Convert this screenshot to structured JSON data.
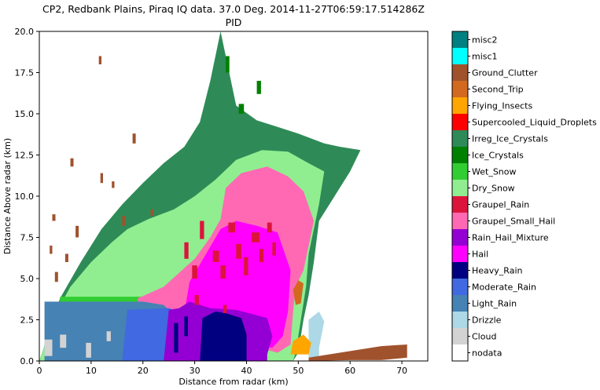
{
  "chart_data": {
    "type": "heatmap",
    "title_line1": "CP2, Redbank Plains, Piraq IQ data. 37.0 Deg. 2014-11-27T06:59:17.514286Z",
    "title_line2": "PID",
    "xlabel": "Distance from radar (km)",
    "ylabel": "Distance Above radar  (km)",
    "xlim": [
      0,
      75
    ],
    "ylim": [
      0,
      20
    ],
    "xticks": [
      0,
      10,
      20,
      30,
      40,
      50,
      60,
      70
    ],
    "yticks": [
      0.0,
      2.5,
      5.0,
      7.5,
      10.0,
      12.5,
      15.0,
      17.5,
      20.0
    ],
    "colorbar_categories": [
      {
        "name": "misc2",
        "color": "#008080"
      },
      {
        "name": "misc1",
        "color": "#00ffff"
      },
      {
        "name": "Ground_Clutter",
        "color": "#a0522d"
      },
      {
        "name": "Second_Trip",
        "color": "#d2691e"
      },
      {
        "name": "Flying_Insects",
        "color": "#ffa500"
      },
      {
        "name": "Supercooled_Liquid_Droplets",
        "color": "#ff0000"
      },
      {
        "name": "Irreg_Ice_Crystals",
        "color": "#2e8b57"
      },
      {
        "name": "Ice_Crystals",
        "color": "#008000"
      },
      {
        "name": "Wet_Snow",
        "color": "#32cd32"
      },
      {
        "name": "Dry_Snow",
        "color": "#90ee90"
      },
      {
        "name": "Graupel_Rain",
        "color": "#dc143c"
      },
      {
        "name": "Graupel_Small_Hail",
        "color": "#ff69b4"
      },
      {
        "name": "Rain_Hail_Mixture",
        "color": "#9400d3"
      },
      {
        "name": "Hail",
        "color": "#ff00ff"
      },
      {
        "name": "Heavy_Rain",
        "color": "#000080"
      },
      {
        "name": "Moderate_Rain",
        "color": "#4169e1"
      },
      {
        "name": "Light_Rain",
        "color": "#4682b4"
      },
      {
        "name": "Drizzle",
        "color": "#add8e6"
      },
      {
        "name": "Cloud",
        "color": "#d3d3d3"
      },
      {
        "name": "nodata",
        "color": "#ffffff"
      }
    ],
    "regions": [
      {
        "class": "Irreg_Ice_Crystals",
        "poly": [
          [
            0,
            0
          ],
          [
            4,
            3.8
          ],
          [
            8,
            6
          ],
          [
            12,
            8
          ],
          [
            16,
            9.5
          ],
          [
            20,
            10.8
          ],
          [
            24,
            12
          ],
          [
            28,
            13
          ],
          [
            31,
            14.5
          ],
          [
            33,
            17
          ],
          [
            35,
            20
          ],
          [
            37,
            17
          ],
          [
            38,
            15.5
          ],
          [
            42,
            14.6
          ],
          [
            46,
            14.2
          ],
          [
            50,
            13.8
          ],
          [
            55,
            13.2
          ],
          [
            58,
            13
          ],
          [
            62,
            12.8
          ],
          [
            60,
            11.5
          ],
          [
            56,
            9.5
          ],
          [
            54,
            8.5
          ],
          [
            53,
            6
          ],
          [
            52,
            4
          ],
          [
            51,
            2.5
          ],
          [
            50,
            0.5
          ],
          [
            49,
            0
          ]
        ]
      },
      {
        "class": "Dry_Snow",
        "poly": [
          [
            0,
            0
          ],
          [
            3,
            2.8
          ],
          [
            6,
            4.5
          ],
          [
            10,
            6
          ],
          [
            14,
            7.2
          ],
          [
            17,
            8
          ],
          [
            21,
            8.6
          ],
          [
            26,
            9.2
          ],
          [
            30,
            10
          ],
          [
            34,
            11
          ],
          [
            38,
            12.2
          ],
          [
            43,
            12.8
          ],
          [
            48,
            12.7
          ],
          [
            52,
            12
          ],
          [
            55,
            11.5
          ],
          [
            54,
            9.5
          ],
          [
            53,
            8
          ],
          [
            52,
            6.5
          ],
          [
            51.5,
            4.5
          ],
          [
            50.5,
            2.5
          ],
          [
            49.5,
            0.5
          ],
          [
            49,
            0
          ]
        ]
      },
      {
        "class": "Wet_Snow",
        "poly": [
          [
            4,
            3.4
          ],
          [
            42,
            3.4
          ],
          [
            42,
            3.9
          ],
          [
            4,
            3.9
          ]
        ]
      },
      {
        "class": "Graupel_Small_Hail",
        "poly": [
          [
            19,
            3.8
          ],
          [
            24,
            4.5
          ],
          [
            30,
            6.2
          ],
          [
            33,
            7.5
          ],
          [
            35,
            8.6
          ],
          [
            36,
            10.5
          ],
          [
            39,
            11.4
          ],
          [
            44,
            11.8
          ],
          [
            48,
            11.2
          ],
          [
            51,
            10.3
          ],
          [
            53,
            8.5
          ],
          [
            51,
            5.5
          ],
          [
            49.5,
            4.5
          ],
          [
            49,
            3
          ],
          [
            48.5,
            1
          ],
          [
            46,
            0.5
          ],
          [
            40,
            1
          ],
          [
            20,
            1
          ]
        ]
      },
      {
        "class": "Hail",
        "poly": [
          [
            27,
            1
          ],
          [
            29,
            4.8
          ],
          [
            32,
            6.4
          ],
          [
            35,
            8
          ],
          [
            38,
            8.5
          ],
          [
            42,
            8.2
          ],
          [
            46,
            7.8
          ],
          [
            48.5,
            5.5
          ],
          [
            48,
            3
          ],
          [
            47,
            1.5
          ],
          [
            45,
            0.8
          ],
          [
            40,
            1
          ],
          [
            33,
            1
          ]
        ]
      },
      {
        "class": "Light_Rain",
        "poly": [
          [
            1,
            0
          ],
          [
            1,
            3.6
          ],
          [
            20,
            3.6
          ],
          [
            24,
            3.4
          ],
          [
            26,
            2.8
          ],
          [
            27,
            0
          ]
        ]
      },
      {
        "class": "Moderate_Rain",
        "poly": [
          [
            16,
            0
          ],
          [
            17,
            3.1
          ],
          [
            25,
            3.2
          ],
          [
            27,
            3.0
          ],
          [
            30,
            3.1
          ],
          [
            30,
            0
          ]
        ]
      },
      {
        "class": "Rain_Hail_Mixture",
        "poly": [
          [
            24,
            0
          ],
          [
            25,
            3.1
          ],
          [
            27,
            3.2
          ],
          [
            29,
            3.6
          ],
          [
            33,
            3.2
          ],
          [
            38,
            3.1
          ],
          [
            44,
            2.6
          ],
          [
            45,
            1.5
          ],
          [
            44,
            0.4
          ],
          [
            44,
            0
          ]
        ]
      },
      {
        "class": "Heavy_Rain",
        "poly": [
          [
            31,
            0
          ],
          [
            31.5,
            2.6
          ],
          [
            34,
            3.0
          ],
          [
            36,
            2.9
          ],
          [
            39,
            2.6
          ],
          [
            40,
            1.6
          ],
          [
            40,
            0
          ]
        ]
      },
      {
        "class": "Drizzle",
        "poly": [
          [
            52,
            0
          ],
          [
            52,
            2.5
          ],
          [
            54,
            3.0
          ],
          [
            55,
            2.4
          ],
          [
            54,
            0.8
          ],
          [
            54,
            0
          ]
        ]
      },
      {
        "class": "Flying_Insects",
        "poly": [
          [
            48.5,
            0.4
          ],
          [
            49,
            1.2
          ],
          [
            51,
            1.6
          ],
          [
            52.5,
            1.1
          ],
          [
            52,
            0.4
          ]
        ]
      },
      {
        "class": "Second_Trip",
        "poly": [
          [
            49,
            4.3
          ],
          [
            50,
            4.9
          ],
          [
            51,
            4.7
          ],
          [
            50.5,
            3.5
          ],
          [
            49.5,
            3.4
          ]
        ]
      },
      {
        "class": "Ground_Clutter",
        "poly": [
          [
            52,
            0.2
          ],
          [
            60,
            0.6
          ],
          [
            66,
            0.9
          ],
          [
            71,
            1.0
          ],
          [
            71,
            0.2
          ],
          [
            66,
            0.05
          ],
          [
            60,
            0.05
          ],
          [
            52,
            0
          ]
        ]
      }
    ],
    "patches": [
      {
        "class": "Ground_Clutter",
        "rects": [
          [
            6.0,
            11.8,
            0.6,
            0.5
          ],
          [
            7.0,
            7.5,
            0.6,
            0.7
          ],
          [
            11.5,
            18.0,
            0.5,
            0.5
          ],
          [
            11.8,
            10.8,
            0.5,
            0.6
          ],
          [
            14.0,
            10.5,
            0.5,
            0.4
          ],
          [
            16.0,
            8.2,
            0.6,
            0.6
          ],
          [
            18.0,
            13.2,
            0.6,
            0.6
          ],
          [
            21.5,
            8.8,
            0.5,
            0.4
          ],
          [
            2.5,
            8.5,
            0.6,
            0.4
          ],
          [
            2.0,
            6.5,
            0.5,
            0.5
          ],
          [
            3.0,
            4.8,
            0.6,
            0.6
          ],
          [
            5.0,
            6.0,
            0.6,
            0.5
          ]
        ]
      },
      {
        "class": "Graupel_Rain",
        "rects": [
          [
            28.0,
            6.2,
            0.8,
            1.0
          ],
          [
            29.5,
            5.0,
            1.0,
            0.8
          ],
          [
            31.0,
            7.4,
            0.8,
            1.1
          ],
          [
            33.5,
            6.0,
            1.2,
            0.7
          ],
          [
            35.0,
            5.0,
            1.0,
            0.8
          ],
          [
            36.5,
            7.8,
            1.3,
            0.6
          ],
          [
            38.0,
            6.2,
            1.0,
            0.9
          ],
          [
            39.5,
            5.2,
            0.8,
            1.1
          ],
          [
            41.0,
            7.2,
            1.5,
            0.6
          ],
          [
            42.5,
            6.0,
            0.8,
            0.8
          ],
          [
            44.0,
            7.8,
            0.9,
            0.6
          ],
          [
            45.0,
            6.4,
            0.7,
            0.8
          ],
          [
            30.0,
            3.4,
            0.8,
            0.6
          ],
          [
            35.5,
            2.9,
            0.7,
            0.5
          ]
        ]
      },
      {
        "class": "Cloud",
        "rects": [
          [
            1.0,
            0.3,
            1.5,
            1.0
          ],
          [
            4.0,
            0.8,
            1.2,
            0.8
          ],
          [
            9.0,
            0.2,
            1.0,
            0.9
          ],
          [
            13.0,
            1.2,
            0.8,
            0.6
          ]
        ]
      },
      {
        "class": "Heavy_Rain",
        "rects": [
          [
            26.0,
            0.5,
            0.8,
            1.8
          ],
          [
            28.0,
            1.5,
            0.7,
            1.2
          ]
        ]
      },
      {
        "class": "Ice_Crystals",
        "rects": [
          [
            36.0,
            17.5,
            0.7,
            1.0
          ],
          [
            38.5,
            15.0,
            1.0,
            0.6
          ],
          [
            42.0,
            16.2,
            0.8,
            0.8
          ]
        ]
      }
    ]
  }
}
